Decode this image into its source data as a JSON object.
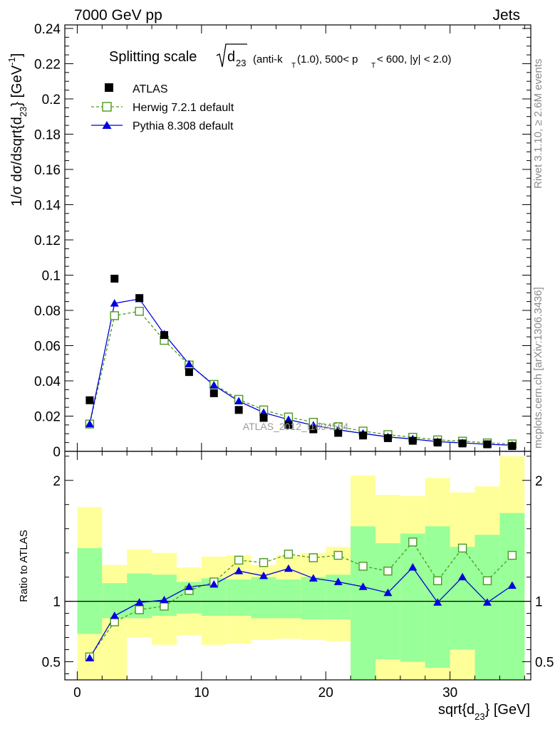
{
  "header": {
    "left": "7000 GeV pp",
    "right": "Jets"
  },
  "side_labels": {
    "rivet": "Rivet 3.1.10, ≥ 2.6M events",
    "mcplots": "mcplots.cern.ch [arXiv:1306.3436]"
  },
  "watermark": "ATLAS_2012_I1094564",
  "chart_data": [
    {
      "type": "line",
      "title_prefix": "Splitting scale",
      "title_sqrt_arg": "d",
      "title_sqrt_sub": "23",
      "title_rest": "(anti-k",
      "title_kt_sub": "T",
      "title_rest2": "(1.0), 500< p",
      "title_pt_sub": "T",
      "title_rest3": " < 600, |y| < 2.0)",
      "ylabel": "1/σ dσ/dsqrt{d",
      "ylabel_sub": "23",
      "ylabel_end": "} [GeV",
      "ylabel_sup": "-1",
      "ylabel_close": "]",
      "xlim": [
        -1,
        36.5
      ],
      "ylim": [
        0,
        0.242
      ],
      "yticks": [
        0,
        0.02,
        0.04,
        0.06,
        0.08,
        0.1,
        0.12,
        0.14,
        0.16,
        0.18,
        0.2,
        0.22,
        0.24
      ],
      "ytick_labels": [
        "0",
        "0.02",
        "0.04",
        "0.06",
        "0.08",
        "0.1",
        "0.12",
        "0.14",
        "0.16",
        "0.18",
        "0.2",
        "0.22",
        "0.24"
      ],
      "legend_position": "top-left",
      "x": [
        1,
        3,
        5,
        7,
        9,
        11,
        13,
        15,
        17,
        19,
        21,
        23,
        25,
        27,
        29,
        31,
        33,
        35
      ],
      "series": [
        {
          "name": "ATLAS",
          "marker": "filled-square",
          "color": "#000000",
          "values": [
            0.029,
            0.098,
            0.087,
            0.066,
            0.045,
            0.033,
            0.0235,
            0.019,
            0.015,
            0.0125,
            0.0105,
            0.009,
            0.0075,
            0.006,
            0.005,
            0.0045,
            0.004,
            0.003
          ]
        },
        {
          "name": "Herwig 7.2.1 default",
          "marker": "open-square",
          "color": "#4a9a1e",
          "dashed": true,
          "values": [
            0.0155,
            0.077,
            0.0795,
            0.063,
            0.049,
            0.038,
            0.0295,
            0.0235,
            0.0195,
            0.0165,
            0.014,
            0.0115,
            0.0095,
            0.008,
            0.0065,
            0.0058,
            0.0048,
            0.0042
          ]
        },
        {
          "name": "Pythia 8.308 default",
          "marker": "filled-triangle",
          "color": "#0000dd",
          "values": [
            0.0155,
            0.084,
            0.0865,
            0.0665,
            0.0495,
            0.0375,
            0.0285,
            0.022,
            0.018,
            0.0148,
            0.0122,
            0.0102,
            0.0082,
            0.007,
            0.0055,
            0.0048,
            0.004,
            0.0035
          ]
        }
      ]
    },
    {
      "type": "line",
      "ylabel": "Ratio to ATLAS",
      "xlabel": "sqrt{d",
      "xlabel_sub": "23",
      "xlabel_end": "} [GeV]",
      "xlim": [
        -1,
        36.5
      ],
      "ylim": [
        0.35,
        2.24
      ],
      "xticks": [
        0,
        10,
        20,
        30
      ],
      "xtick_labels": [
        "0",
        "10",
        "20",
        "30"
      ],
      "yticks": [
        0.5,
        1,
        2
      ],
      "ytick_labels": [
        "0.5",
        "1",
        "2"
      ],
      "band_edges": [
        0,
        2,
        4,
        6,
        8,
        10,
        12,
        14,
        16,
        18,
        20,
        22,
        24,
        26,
        28,
        30,
        32,
        34,
        36
      ],
      "band_1sigma": [
        [
          0.73,
          1.44
        ],
        [
          0.86,
          1.15
        ],
        [
          0.86,
          1.23
        ],
        [
          0.88,
          1.22
        ],
        [
          0.9,
          1.16
        ],
        [
          0.88,
          1.19
        ],
        [
          0.88,
          1.18
        ],
        [
          0.86,
          1.2
        ],
        [
          0.86,
          1.18
        ],
        [
          0.85,
          1.2
        ],
        [
          0.85,
          1.22
        ],
        [
          0.35,
          1.62
        ],
        [
          0.52,
          1.48
        ],
        [
          0.5,
          1.56
        ],
        [
          0.45,
          1.62
        ],
        [
          0.6,
          1.45
        ],
        [
          0.35,
          1.55
        ],
        [
          0.35,
          1.73
        ]
      ],
      "band_2sigma": [
        [
          0.35,
          1.78
        ],
        [
          0.35,
          1.3
        ],
        [
          0.7,
          1.43
        ],
        [
          0.64,
          1.4
        ],
        [
          0.72,
          1.28
        ],
        [
          0.64,
          1.37
        ],
        [
          0.65,
          1.38
        ],
        [
          0.68,
          1.3
        ],
        [
          0.69,
          1.38
        ],
        [
          0.68,
          1.4
        ],
        [
          0.67,
          1.45
        ],
        [
          0.35,
          2.04
        ],
        [
          0.35,
          1.88
        ],
        [
          0.35,
          1.87
        ],
        [
          0.35,
          2.02
        ],
        [
          0.35,
          1.9
        ],
        [
          0.35,
          1.95
        ],
        [
          0.35,
          2.2
        ]
      ],
      "x": [
        1,
        3,
        5,
        7,
        9,
        11,
        13,
        15,
        17,
        19,
        21,
        23,
        25,
        27,
        29,
        31,
        33,
        35
      ],
      "series": [
        {
          "name": "Herwig 7.2.1 default",
          "marker": "open-square",
          "color": "#4a9a1e",
          "dashed": true,
          "values": [
            0.54,
            0.83,
            0.93,
            0.96,
            1.09,
            1.16,
            1.34,
            1.32,
            1.39,
            1.36,
            1.38,
            1.29,
            1.25,
            1.49,
            1.17,
            1.44,
            1.17,
            1.38
          ]
        },
        {
          "name": "Pythia 8.308 default",
          "marker": "filled-triangle",
          "color": "#0000dd",
          "values": [
            0.53,
            0.88,
            0.99,
            1.01,
            1.12,
            1.14,
            1.25,
            1.21,
            1.27,
            1.19,
            1.16,
            1.12,
            1.07,
            1.28,
            0.99,
            1.2,
            0.99,
            1.13
          ]
        }
      ]
    }
  ]
}
